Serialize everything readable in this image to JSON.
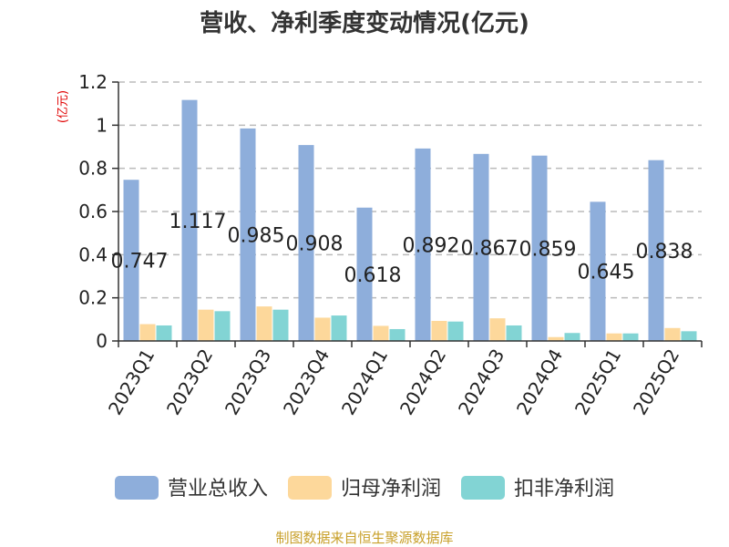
{
  "chart_data": {
    "type": "bar",
    "title": "营收、净利季度变动情况(亿元)",
    "ylabel": "(亿元)",
    "xlabel": "",
    "ylim": [
      0,
      1.2
    ],
    "yticks": [
      "0",
      "0.2",
      "0.4",
      "0.6",
      "0.8",
      "1",
      "1.2"
    ],
    "ytick_values": [
      0,
      0.2,
      0.4,
      0.6,
      0.8,
      1.0,
      1.2
    ],
    "grid": true,
    "legend_position": "bottom",
    "categories": [
      "2023Q1",
      "2023Q2",
      "2023Q3",
      "2023Q4",
      "2024Q1",
      "2024Q2",
      "2024Q3",
      "2024Q4",
      "2025Q1",
      "2025Q2"
    ],
    "series": [
      {
        "name": "营业总收入",
        "color": "#8eaedb",
        "values": [
          0.747,
          1.117,
          0.985,
          0.908,
          0.618,
          0.892,
          0.867,
          0.859,
          0.645,
          0.838
        ],
        "data_labels": [
          "0.747",
          "1.117",
          "0.985",
          "0.908",
          "0.618",
          "0.892",
          "0.867",
          "0.859",
          "0.645",
          "0.838"
        ]
      },
      {
        "name": "归母净利润",
        "color": "#fdd89b",
        "values": [
          0.078,
          0.145,
          0.16,
          0.108,
          0.07,
          0.093,
          0.105,
          0.018,
          0.035,
          0.06
        ]
      },
      {
        "name": "扣非净利润",
        "color": "#82d4d4",
        "values": [
          0.072,
          0.138,
          0.145,
          0.118,
          0.055,
          0.09,
          0.072,
          0.037,
          0.035,
          0.045
        ]
      }
    ]
  },
  "footer": {
    "source": "制图数据来自恒生聚源数据库"
  }
}
